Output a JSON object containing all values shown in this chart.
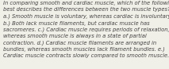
{
  "text": "In comparing smooth and cardiac muscle, which of the following\nbest describes the differences between the two muscle types?\na.) Smooth muscle is voluntary, whereas cardiac is involuntary.\nb.) Both lack muscle filaments, but cardiac muscle has\nsacromeres. c.) Cardiac muscle requires periods of relaxation,\nwhereas smooth muscle is always in a state of partial\ncontraction. d.) Cardiac muscle filaments are arranged in\nbundles, whereas smooth muscles lack filament bundles. e.)\nCardiac muscle contracts slowly compared to smooth muscle.",
  "font_size": 4.9,
  "font_color": "#444444",
  "background_color": "#f0efe8",
  "font_family": "DejaVu Sans",
  "font_style": "italic",
  "linespacing": 1.38
}
